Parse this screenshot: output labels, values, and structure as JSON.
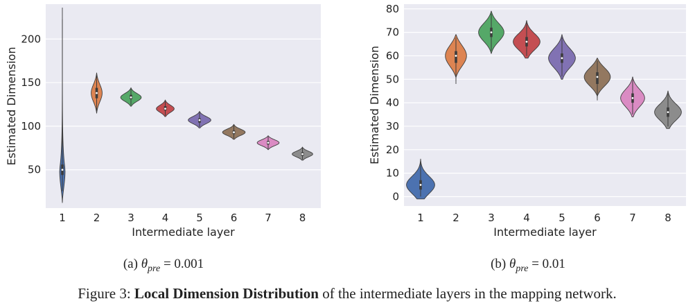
{
  "chart_data": [
    {
      "type": "violin",
      "subcaption": "(a) θ_pre = 0.001",
      "subcaption_prefix": "(a) ",
      "subcaption_param": "θ",
      "subcaption_subscript": "pre",
      "subcaption_value": " = 0.001",
      "xlabel": "Intermediate layer",
      "ylabel": "Estimated Dimension",
      "categories": [
        "1",
        "2",
        "3",
        "4",
        "5",
        "6",
        "7",
        "8"
      ],
      "yticks": [
        "50",
        "100",
        "150",
        "200"
      ],
      "ylim": [
        6,
        240
      ],
      "grid": true,
      "series": [
        {
          "median": 50,
          "min": 12,
          "max": 236,
          "q1": 44,
          "q3": 56,
          "halfwidth": 0.08,
          "shape": "long-upper-tail",
          "color": "#4c72b0"
        },
        {
          "median": 138,
          "min": 115,
          "max": 161,
          "q1": 132,
          "q3": 144,
          "halfwidth": 0.16,
          "color": "#dd8452"
        },
        {
          "median": 133,
          "min": 123,
          "max": 144,
          "q1": 131,
          "q3": 136,
          "halfwidth": 0.3,
          "color": "#55a868"
        },
        {
          "median": 120,
          "min": 111,
          "max": 130,
          "q1": 118,
          "q3": 123,
          "halfwidth": 0.26,
          "color": "#c44e52"
        },
        {
          "median": 107,
          "min": 98,
          "max": 117,
          "q1": 104,
          "q3": 109,
          "halfwidth": 0.33,
          "color": "#8172b3"
        },
        {
          "median": 93,
          "min": 85,
          "max": 102,
          "q1": 91,
          "q3": 95,
          "halfwidth": 0.33,
          "color": "#937860"
        },
        {
          "median": 81,
          "min": 73,
          "max": 89,
          "q1": 79,
          "q3": 83,
          "halfwidth": 0.32,
          "color": "#da8bc3"
        },
        {
          "median": 68,
          "min": 61,
          "max": 76,
          "q1": 66,
          "q3": 70,
          "halfwidth": 0.3,
          "color": "#8c8c8c"
        }
      ]
    },
    {
      "type": "violin",
      "subcaption": "(b) θ_pre = 0.01",
      "subcaption_prefix": "(b) ",
      "subcaption_param": "θ",
      "subcaption_subscript": "pre",
      "subcaption_value": " = 0.01",
      "xlabel": "Intermediate layer",
      "ylabel": "Estimated Dimension",
      "categories": [
        "1",
        "2",
        "3",
        "4",
        "5",
        "6",
        "7",
        "8"
      ],
      "yticks": [
        "0",
        "10",
        "20",
        "30",
        "40",
        "50",
        "60",
        "70",
        "80"
      ],
      "ylim": [
        -4,
        82
      ],
      "grid": true,
      "series": [
        {
          "median": 5,
          "min": -1,
          "max": 16,
          "q1": 3,
          "q3": 7,
          "halfwidth": 0.4,
          "color": "#4c72b0"
        },
        {
          "median": 60,
          "min": 48,
          "max": 69,
          "q1": 57,
          "q3": 62,
          "halfwidth": 0.3,
          "color": "#dd8452"
        },
        {
          "median": 70,
          "min": 61,
          "max": 79,
          "q1": 68,
          "q3": 72,
          "halfwidth": 0.36,
          "color": "#55a868"
        },
        {
          "median": 66,
          "min": 59,
          "max": 75,
          "q1": 64,
          "q3": 68,
          "halfwidth": 0.38,
          "color": "#c44e52"
        },
        {
          "median": 59,
          "min": 50,
          "max": 69,
          "q1": 57,
          "q3": 61,
          "halfwidth": 0.38,
          "color": "#8172b3"
        },
        {
          "median": 51,
          "min": 41,
          "max": 59,
          "q1": 48,
          "q3": 53,
          "halfwidth": 0.37,
          "color": "#937860"
        },
        {
          "median": 42,
          "min": 34,
          "max": 51,
          "q1": 40,
          "q3": 44,
          "halfwidth": 0.34,
          "color": "#da8bc3"
        },
        {
          "median": 36,
          "min": 29,
          "max": 45,
          "q1": 34,
          "q3": 38,
          "halfwidth": 0.38,
          "color": "#8c8c8c"
        }
      ]
    }
  ],
  "caption": {
    "prefix": "Figure 3: ",
    "bold": "Local Dimension Distribution",
    "rest": " of the intermediate layers in the mapping network."
  },
  "colors": {
    "plot_background": "#eaeaf2",
    "grid": "#ffffff",
    "violin_edge": "#3f3f3f",
    "box": "#3c3c3c"
  }
}
